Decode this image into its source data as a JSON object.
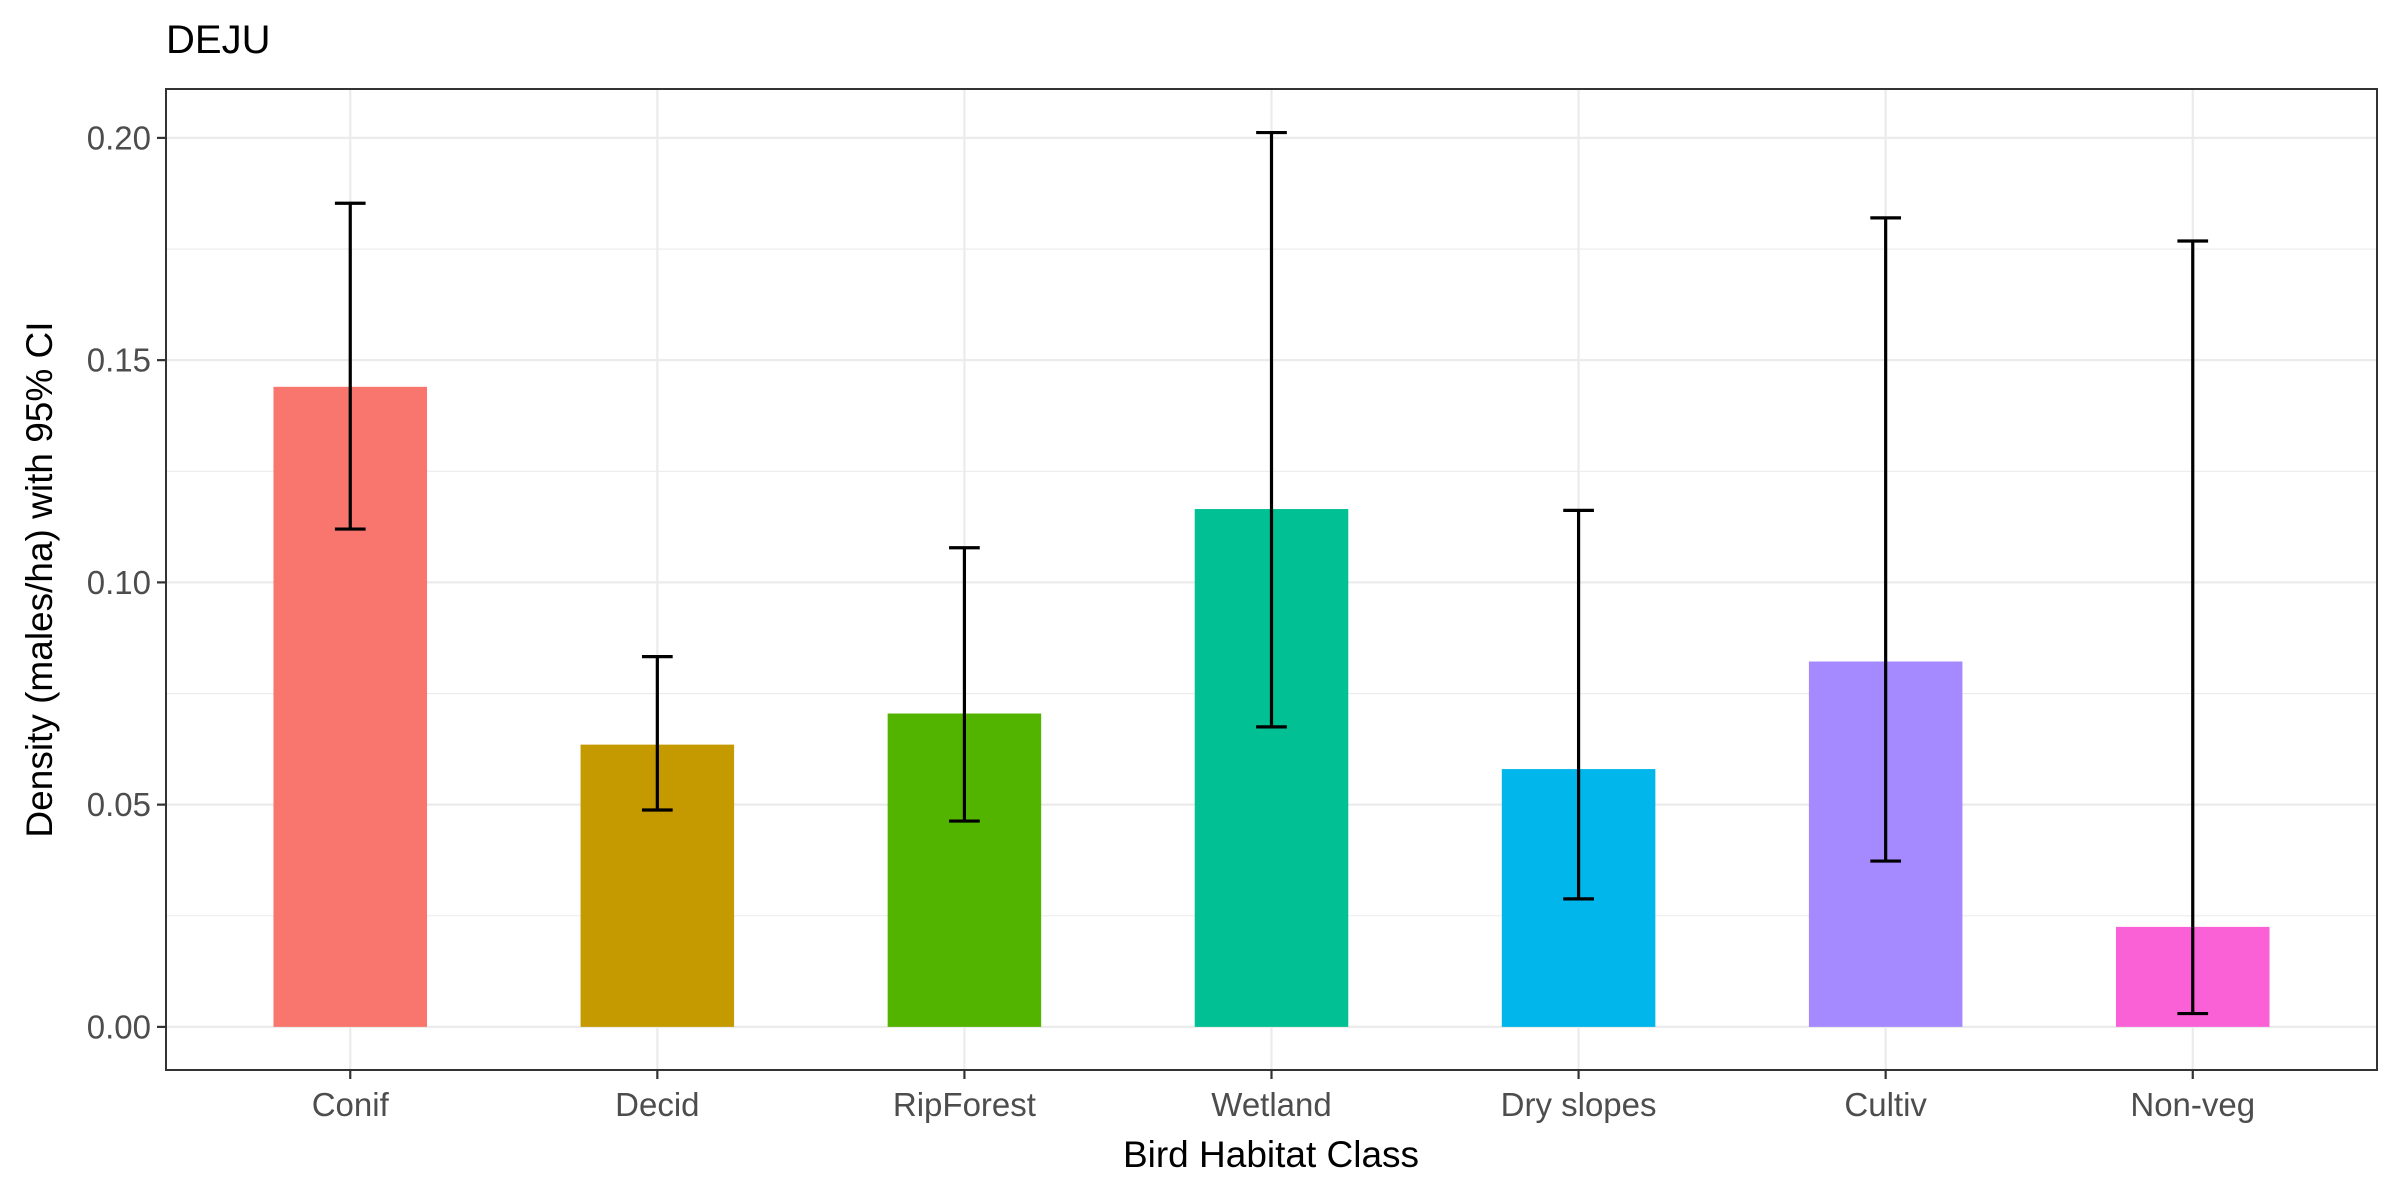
{
  "chart_data": {
    "type": "bar",
    "title": "DEJU",
    "xlabel": "Bird Habitat Class",
    "ylabel": "Density (males/ha) with 95% CI",
    "categories": [
      "Conif",
      "Decid",
      "RipForest",
      "Wetland",
      "Dry slopes",
      "Cultiv",
      "Non-veg"
    ],
    "values": [
      0.144,
      0.0635,
      0.0705,
      0.1165,
      0.058,
      0.0822,
      0.0225
    ],
    "ci_lower": [
      0.112,
      0.0488,
      0.0463,
      0.0675,
      0.0288,
      0.0373,
      0.003
    ],
    "ci_upper": [
      0.1853,
      0.0833,
      0.1078,
      0.2012,
      0.1162,
      0.182,
      0.1768
    ],
    "colors": [
      "#F8766D",
      "#C49A00",
      "#53B400",
      "#00C094",
      "#00B6EB",
      "#A58AFF",
      "#FB61D7"
    ],
    "ylim": [
      -0.0097,
      0.211
    ],
    "yticks": [
      0.0,
      0.05,
      0.1,
      0.15,
      0.2
    ],
    "ytick_labels": [
      "0.00",
      "0.05",
      "0.10",
      "0.15",
      "0.20"
    ],
    "grid": true,
    "legend": "none"
  }
}
